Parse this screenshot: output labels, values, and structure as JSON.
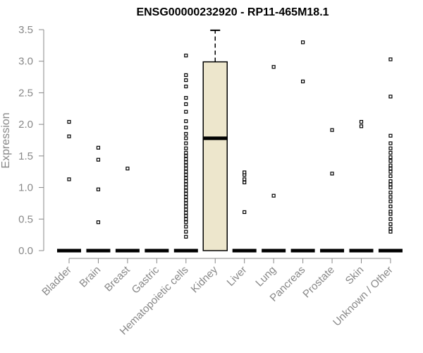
{
  "chart_data": {
    "type": "box",
    "title": "ENSG00000232920 - RP11-465M18.1",
    "xlabel": "",
    "ylabel": "Expression",
    "ylim": [
      0,
      3.5
    ],
    "yticks": [
      "0.0",
      "0.5",
      "1.0",
      "1.5",
      "2.0",
      "2.5",
      "3.0",
      "3.5"
    ],
    "box_fill": "#ede6cc",
    "categories": [
      "Bladder",
      "Brain",
      "Breast",
      "Gastric",
      "Hematopoietic cells",
      "Kidney",
      "Liver",
      "Lung",
      "Pancreas",
      "Prostate",
      "Skin",
      "Unknown / Other"
    ],
    "boxes": [
      {
        "median": 0,
        "q1": 0,
        "q3": 0,
        "whisker_low": 0,
        "whisker_high": 0,
        "outliers": [
          1.13,
          1.81,
          2.04
        ]
      },
      {
        "median": 0,
        "q1": 0,
        "q3": 0,
        "whisker_low": 0,
        "whisker_high": 0,
        "outliers": [
          0.45,
          0.97,
          1.44,
          1.63
        ]
      },
      {
        "median": 0,
        "q1": 0,
        "q3": 0,
        "whisker_low": 0,
        "whisker_high": 0,
        "outliers": [
          1.3
        ]
      },
      {
        "median": 0,
        "q1": 0,
        "q3": 0,
        "whisker_low": 0,
        "whisker_high": 0,
        "outliers": []
      },
      {
        "median": 0,
        "q1": 0,
        "q3": 0,
        "whisker_low": 0,
        "whisker_high": 0,
        "outliers": [
          0.22,
          0.3,
          0.38,
          0.45,
          0.5,
          0.55,
          0.6,
          0.65,
          0.7,
          0.75,
          0.8,
          0.85,
          0.9,
          0.95,
          1.0,
          1.05,
          1.1,
          1.15,
          1.2,
          1.25,
          1.3,
          1.35,
          1.4,
          1.45,
          1.5,
          1.55,
          1.62,
          1.7,
          1.78,
          1.85,
          1.95,
          2.05,
          2.2,
          2.32,
          2.42,
          2.6,
          2.7,
          2.78,
          3.09
        ]
      },
      {
        "median": 1.78,
        "q1": 0,
        "q3": 2.99,
        "whisker_low": 0,
        "whisker_high": 3.49,
        "outliers": []
      },
      {
        "median": 0,
        "q1": 0,
        "q3": 0,
        "whisker_low": 0,
        "whisker_high": 0,
        "outliers": [
          0.61,
          1.08,
          1.13,
          1.2,
          1.24
        ]
      },
      {
        "median": 0,
        "q1": 0,
        "q3": 0,
        "whisker_low": 0,
        "whisker_high": 0,
        "outliers": [
          0.87,
          2.91
        ]
      },
      {
        "median": 0,
        "q1": 0,
        "q3": 0,
        "whisker_low": 0,
        "whisker_high": 0,
        "outliers": [
          2.68,
          3.3
        ]
      },
      {
        "median": 0,
        "q1": 0,
        "q3": 0,
        "whisker_low": 0,
        "whisker_high": 0,
        "outliers": [
          1.22,
          1.91
        ]
      },
      {
        "median": 0,
        "q1": 0,
        "q3": 0,
        "whisker_low": 0,
        "whisker_high": 0,
        "outliers": [
          1.97,
          2.04
        ]
      },
      {
        "median": 0,
        "q1": 0,
        "q3": 0,
        "whisker_low": 0,
        "whisker_high": 0,
        "outliers": [
          0.3,
          0.35,
          0.42,
          0.5,
          0.58,
          0.62,
          0.7,
          0.78,
          0.85,
          0.92,
          1.0,
          1.05,
          1.1,
          1.18,
          1.25,
          1.3,
          1.35,
          1.42,
          1.48,
          1.55,
          1.62,
          1.7,
          1.82,
          2.44,
          3.03
        ]
      }
    ]
  }
}
